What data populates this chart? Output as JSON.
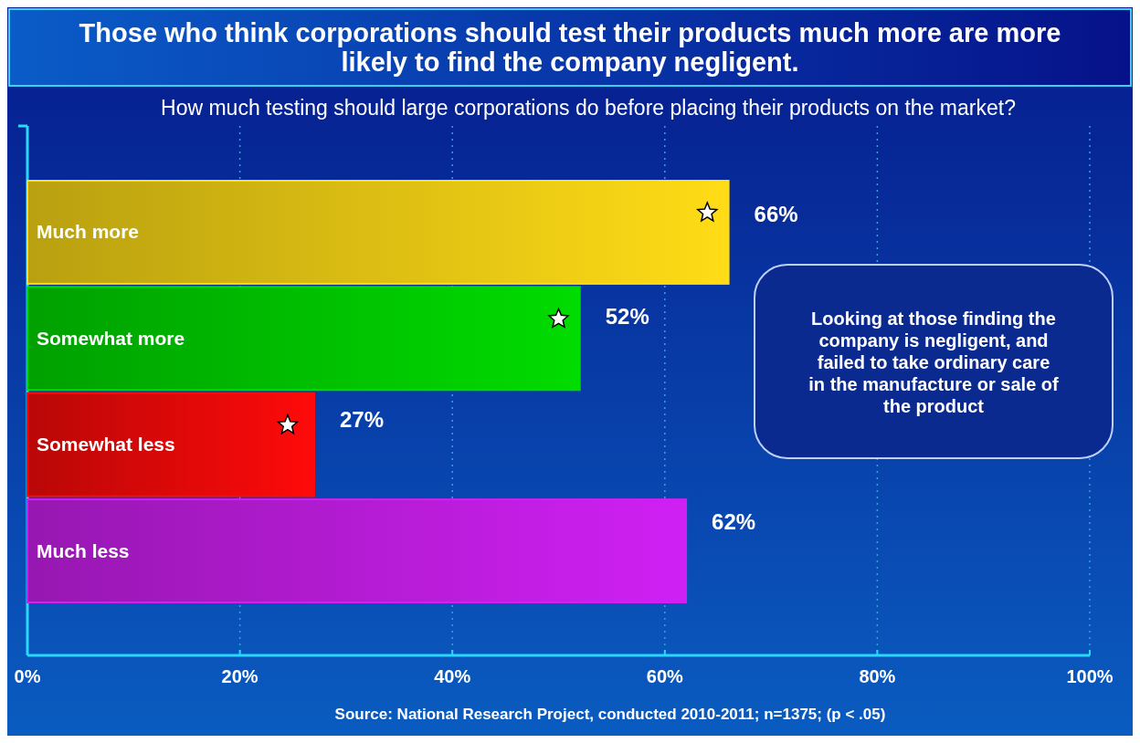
{
  "chart_data": {
    "type": "bar",
    "orientation": "horizontal",
    "title": "Those who think corporations should test their products much more are more likely to find the company negligent.",
    "subtitle": "How much testing should large corporations do before placing their products on the market?",
    "categories": [
      "Much more",
      "Somewhat more",
      "Somewhat less",
      "Much less"
    ],
    "series": [
      {
        "values": [
          66,
          52,
          27,
          62
        ],
        "colors": [
          "#ffdc16",
          "#00dc00",
          "#ff0a0a",
          "#d020f4"
        ],
        "value_labels": [
          "66%",
          "52%",
          "27%",
          "62%"
        ]
      },
      {
        "type": "scatter",
        "marker": "star",
        "color": "#ffffff",
        "values": [
          64,
          50,
          24.5,
          null
        ]
      }
    ],
    "xlim": [
      0,
      100
    ],
    "xticks": [
      {
        "value": 0,
        "label": "0%"
      },
      {
        "value": 20,
        "label": "20%"
      },
      {
        "value": 40,
        "label": "40%"
      },
      {
        "value": 60,
        "label": "60%"
      },
      {
        "value": 80,
        "label": "80%"
      },
      {
        "value": 100,
        "label": "100%"
      }
    ],
    "grid": "x",
    "annotations": [
      "Looking at those finding the company is negligent, and failed to take ordinary care in the manufacture or sale of the product",
      "Source: National Research Project, conducted 2010-2011; n=1375; (p < .05)"
    ]
  }
}
